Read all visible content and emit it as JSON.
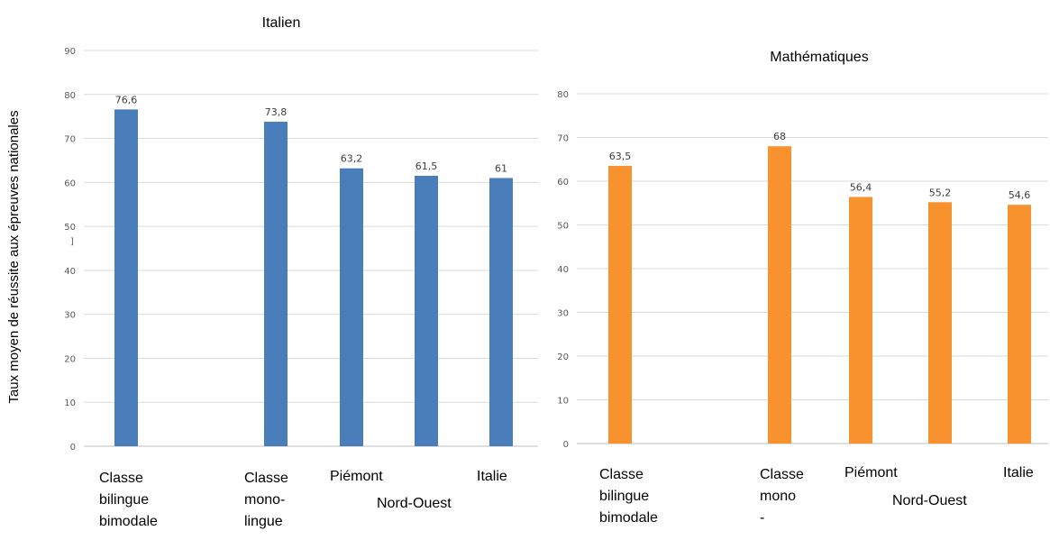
{
  "y_axis_title": "Taux moyen de réussite aux épreuves nationales",
  "stray_mark": "]",
  "chart_data": [
    {
      "type": "bar",
      "title": "Italien",
      "categories": [
        [
          "Classe",
          "bilingue",
          "bimodale"
        ],
        [
          "Classe",
          "mono-",
          "lingue"
        ],
        [
          "Piémont"
        ],
        [
          "Nord-Ouest"
        ],
        [
          "Italie"
        ]
      ],
      "values": [
        76.6,
        73.8,
        63.2,
        61.5,
        61
      ],
      "value_labels": [
        "76,6",
        "73,8",
        "63,2",
        "61,5",
        "61"
      ],
      "ylim": [
        0,
        90
      ],
      "yticks": [
        0,
        10,
        20,
        30,
        40,
        50,
        60,
        70,
        80,
        90
      ],
      "color": "#4a7ebb",
      "grid": true
    },
    {
      "type": "bar",
      "title": "Mathématiques",
      "categories": [
        [
          "Classe",
          "bilingue",
          "bimodale"
        ],
        [
          "Classe",
          "mono",
          "-"
        ],
        [
          "Piémont"
        ],
        [
          "Nord-Ouest"
        ],
        [
          "Italie"
        ]
      ],
      "values": [
        63.5,
        68,
        56.4,
        55.2,
        54.6
      ],
      "value_labels": [
        "63,5",
        "68",
        "56,4",
        "55,2",
        "54,6"
      ],
      "ylim": [
        0,
        80
      ],
      "yticks": [
        0,
        10,
        20,
        30,
        40,
        50,
        60,
        70,
        80
      ],
      "color": "#f7922f",
      "grid": true
    }
  ]
}
